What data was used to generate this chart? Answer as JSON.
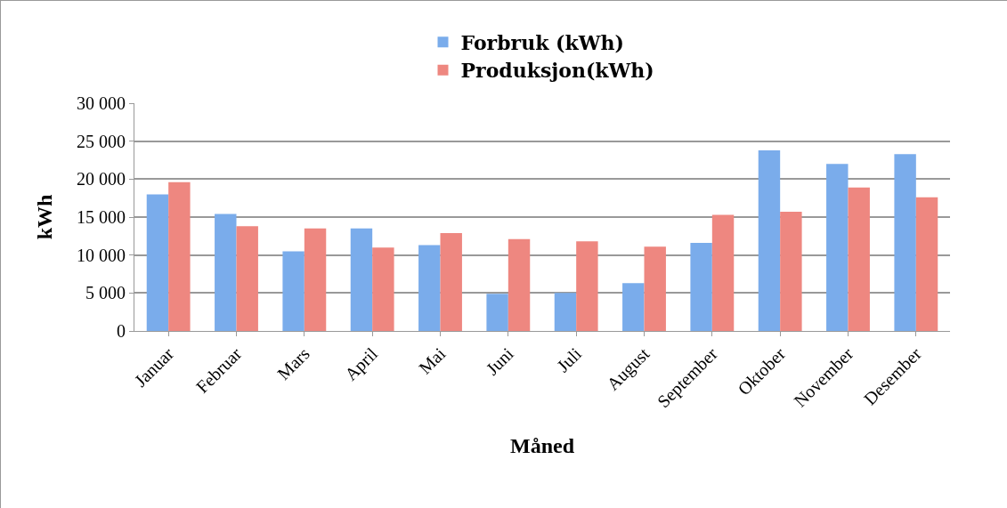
{
  "chart_data": {
    "type": "bar",
    "xlabel": "Måned",
    "ylabel": "kWh",
    "categories": [
      "Januar",
      "Februar",
      "Mars",
      "April",
      "Mai",
      "Juni",
      "Juli",
      "August",
      "September",
      "Oktober",
      "November",
      "Desember"
    ],
    "series": [
      {
        "name": "Forbruk (kWh)",
        "color": "#7aaceb",
        "values": [
          18000,
          15400,
          10500,
          13500,
          11300,
          4900,
          5000,
          6300,
          11600,
          23800,
          22000,
          23300
        ]
      },
      {
        "name": "Produksjon(kWh)",
        "color": "#ee8780",
        "values": [
          19600,
          13800,
          13500,
          11000,
          12900,
          12100,
          11800,
          11100,
          15300,
          15700,
          18900,
          17600
        ]
      }
    ],
    "ylim": [
      0,
      30000
    ],
    "yticks": [
      0,
      {
        "value": 5000,
        "label": "5 000"
      },
      {
        "value": 10000,
        "label": "10 000"
      },
      {
        "value": 15000,
        "label": "15 000"
      },
      {
        "value": 20000,
        "label": "20 000"
      },
      {
        "value": 25000,
        "label": "25 000"
      },
      {
        "value": 30000,
        "label": "30 000"
      }
    ],
    "grid": "y",
    "legend": "top"
  }
}
